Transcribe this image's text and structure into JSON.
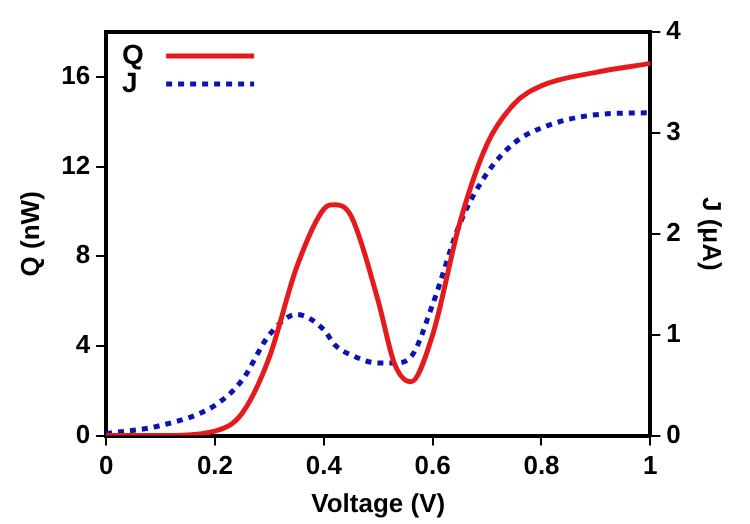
{
  "chart_data": {
    "type": "line",
    "xlabel": "Voltage (V)",
    "ylabel": "Q (nW)",
    "y2label": "J (μA)",
    "xlim": [
      0,
      1
    ],
    "xticks": [
      0,
      0.2,
      0.4,
      0.6,
      0.8,
      1
    ],
    "ylim": [
      0,
      18
    ],
    "yticks": [
      0,
      4,
      8,
      12,
      16
    ],
    "y2lim": [
      0,
      4
    ],
    "y2ticks": [
      0,
      1,
      2,
      3,
      4
    ],
    "grid": false,
    "legend": "top left",
    "marker": "none",
    "x": [
      0,
      0.1,
      0.2,
      0.25,
      0.3,
      0.35,
      0.4,
      0.42,
      0.45,
      0.5,
      0.53,
      0.56,
      0.6,
      0.65,
      0.7,
      0.75,
      0.8,
      0.9,
      1.0
    ],
    "series": [
      {
        "name": "Q",
        "color": "#e41a1c",
        "line_style": "solid",
        "values": [
          0,
          0,
          0.2,
          1,
          3.5,
          7.5,
          10.1,
          10.3,
          9.8,
          6,
          3.2,
          2.4,
          4.5,
          9.5,
          13,
          14.8,
          15.6,
          16.2,
          16.6
        ]
      },
      {
        "name": "J",
        "color": "#0a14b4",
        "line_style": "dotted",
        "axis": "y2",
        "values": [
          0.02,
          0.1,
          0.3,
          0.55,
          1.0,
          1.2,
          1.05,
          0.9,
          0.8,
          0.72,
          0.72,
          0.78,
          1.3,
          2.1,
          2.6,
          2.9,
          3.05,
          3.18,
          3.2
        ]
      }
    ]
  }
}
